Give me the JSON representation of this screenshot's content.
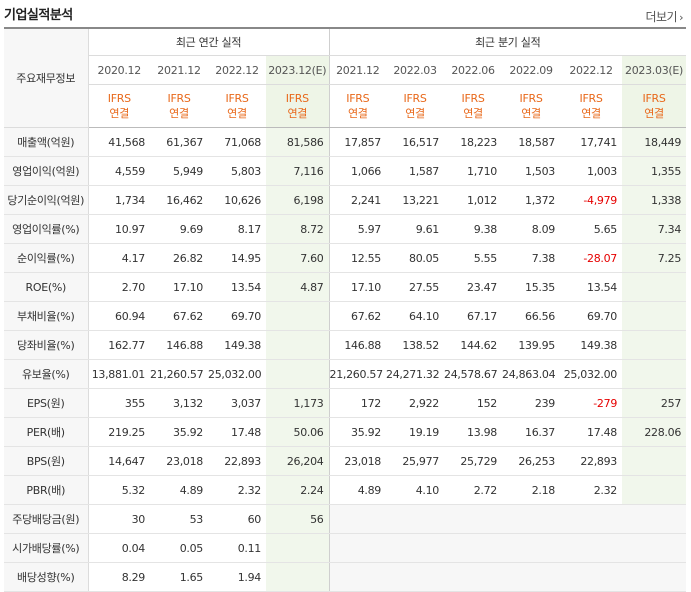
{
  "header": {
    "title": "기업실적분석",
    "more_label": "더보기",
    "more_icon": "chevron-right-icon"
  },
  "table": {
    "corner_label": "주요재무정보",
    "group_annual": "최근 연간 실적",
    "group_quarter": "최근 분기 실적",
    "periods": [
      "2020.12",
      "2021.12",
      "2022.12",
      "2023.12(E)",
      "2021.12",
      "2022.03",
      "2022.06",
      "2022.09",
      "2022.12",
      "2023.03(E)"
    ],
    "standard_top": "IFRS",
    "standard_bottom": "연결",
    "rows": [
      {
        "label": "매출액(억원)",
        "values": [
          "41,568",
          "61,367",
          "71,068",
          "81,586",
          "17,857",
          "16,517",
          "18,223",
          "18,587",
          "17,741",
          "18,449"
        ]
      },
      {
        "label": "영업이익(억원)",
        "values": [
          "4,559",
          "5,949",
          "5,803",
          "7,116",
          "1,066",
          "1,587",
          "1,710",
          "1,503",
          "1,003",
          "1,355"
        ]
      },
      {
        "label": "당기순이익(억원)",
        "values": [
          "1,734",
          "16,462",
          "10,626",
          "6,198",
          "2,241",
          "13,221",
          "1,012",
          "1,372",
          "-4,979",
          "1,338"
        ]
      },
      {
        "label": "영업이익률(%)",
        "values": [
          "10.97",
          "9.69",
          "8.17",
          "8.72",
          "5.97",
          "9.61",
          "9.38",
          "8.09",
          "5.65",
          "7.34"
        ]
      },
      {
        "label": "순이익률(%)",
        "values": [
          "4.17",
          "26.82",
          "14.95",
          "7.60",
          "12.55",
          "80.05",
          "5.55",
          "7.38",
          "-28.07",
          "7.25"
        ]
      },
      {
        "label": "ROE(%)",
        "values": [
          "2.70",
          "17.10",
          "13.54",
          "4.87",
          "17.10",
          "27.55",
          "23.47",
          "15.35",
          "13.54",
          ""
        ]
      },
      {
        "label": "부채비율(%)",
        "values": [
          "60.94",
          "67.62",
          "69.70",
          "",
          "67.62",
          "64.10",
          "67.17",
          "66.56",
          "69.70",
          ""
        ]
      },
      {
        "label": "당좌비율(%)",
        "values": [
          "162.77",
          "146.88",
          "149.38",
          "",
          "146.88",
          "138.52",
          "144.62",
          "139.95",
          "149.38",
          ""
        ]
      },
      {
        "label": "유보율(%)",
        "values": [
          "13,881.01",
          "21,260.57",
          "25,032.00",
          "",
          "21,260.57",
          "24,271.32",
          "24,578.67",
          "24,863.04",
          "25,032.00",
          ""
        ]
      },
      {
        "label": "EPS(원)",
        "values": [
          "355",
          "3,132",
          "3,037",
          "1,173",
          "172",
          "2,922",
          "152",
          "239",
          "-279",
          "257"
        ]
      },
      {
        "label": "PER(배)",
        "values": [
          "219.25",
          "35.92",
          "17.48",
          "50.06",
          "35.92",
          "19.19",
          "13.98",
          "16.37",
          "17.48",
          "228.06"
        ]
      },
      {
        "label": "BPS(원)",
        "values": [
          "14,647",
          "23,018",
          "22,893",
          "26,204",
          "23,018",
          "25,977",
          "25,729",
          "26,253",
          "22,893",
          ""
        ]
      },
      {
        "label": "PBR(배)",
        "values": [
          "5.32",
          "4.89",
          "2.32",
          "2.24",
          "4.89",
          "4.10",
          "2.72",
          "2.18",
          "2.32",
          ""
        ]
      },
      {
        "label": "주당배당금(원)",
        "values": [
          "30",
          "53",
          "60",
          "56",
          "",
          "",
          "",
          "",
          "",
          ""
        ]
      },
      {
        "label": "시가배당률(%)",
        "values": [
          "0.04",
          "0.05",
          "0.11",
          "",
          "",
          "",
          "",
          "",
          "",
          ""
        ]
      },
      {
        "label": "배당성향(%)",
        "values": [
          "8.29",
          "1.65",
          "1.94",
          "",
          "",
          "",
          "",
          "",
          "",
          ""
        ]
      }
    ]
  }
}
